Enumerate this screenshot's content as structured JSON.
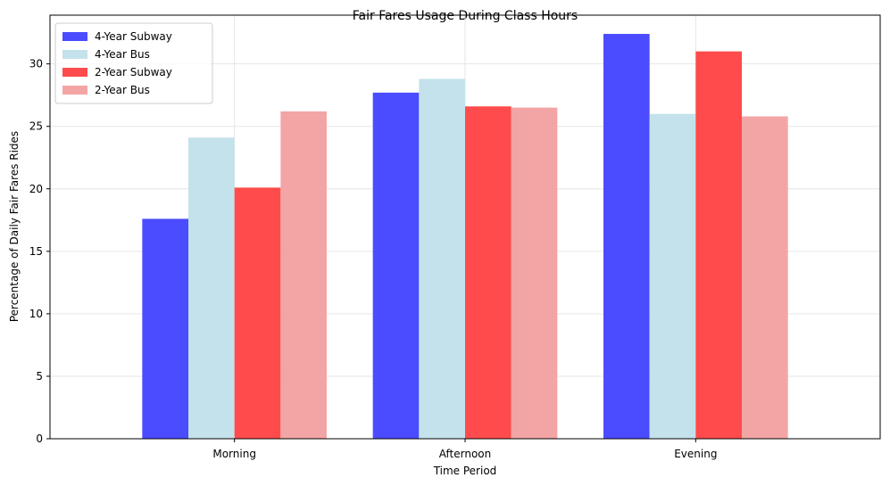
{
  "chart_data": {
    "type": "bar",
    "title": "Fair Fares Usage During Class Hours",
    "xlabel": "Time Period",
    "ylabel": "Percentage of Daily Fair Fares Rides",
    "categories": [
      "Morning",
      "Afternoon",
      "Evening"
    ],
    "ylim": [
      0,
      33.9
    ],
    "yticks": [
      0,
      5,
      10,
      15,
      20,
      25,
      30
    ],
    "grid": true,
    "legend_position": "top-left",
    "series": [
      {
        "name": "4-Year Subway",
        "color": "#4b4bff",
        "values": [
          17.6,
          27.7,
          32.4
        ]
      },
      {
        "name": "4-Year Bus",
        "color": "#c3e2ec",
        "values": [
          24.1,
          28.8,
          26.0
        ]
      },
      {
        "name": "2-Year Subway",
        "color": "#ff4b4b",
        "values": [
          20.1,
          26.6,
          31.0
        ]
      },
      {
        "name": "2-Year Bus",
        "color": "#f3a5a5",
        "values": [
          26.2,
          26.5,
          25.8
        ]
      }
    ]
  }
}
